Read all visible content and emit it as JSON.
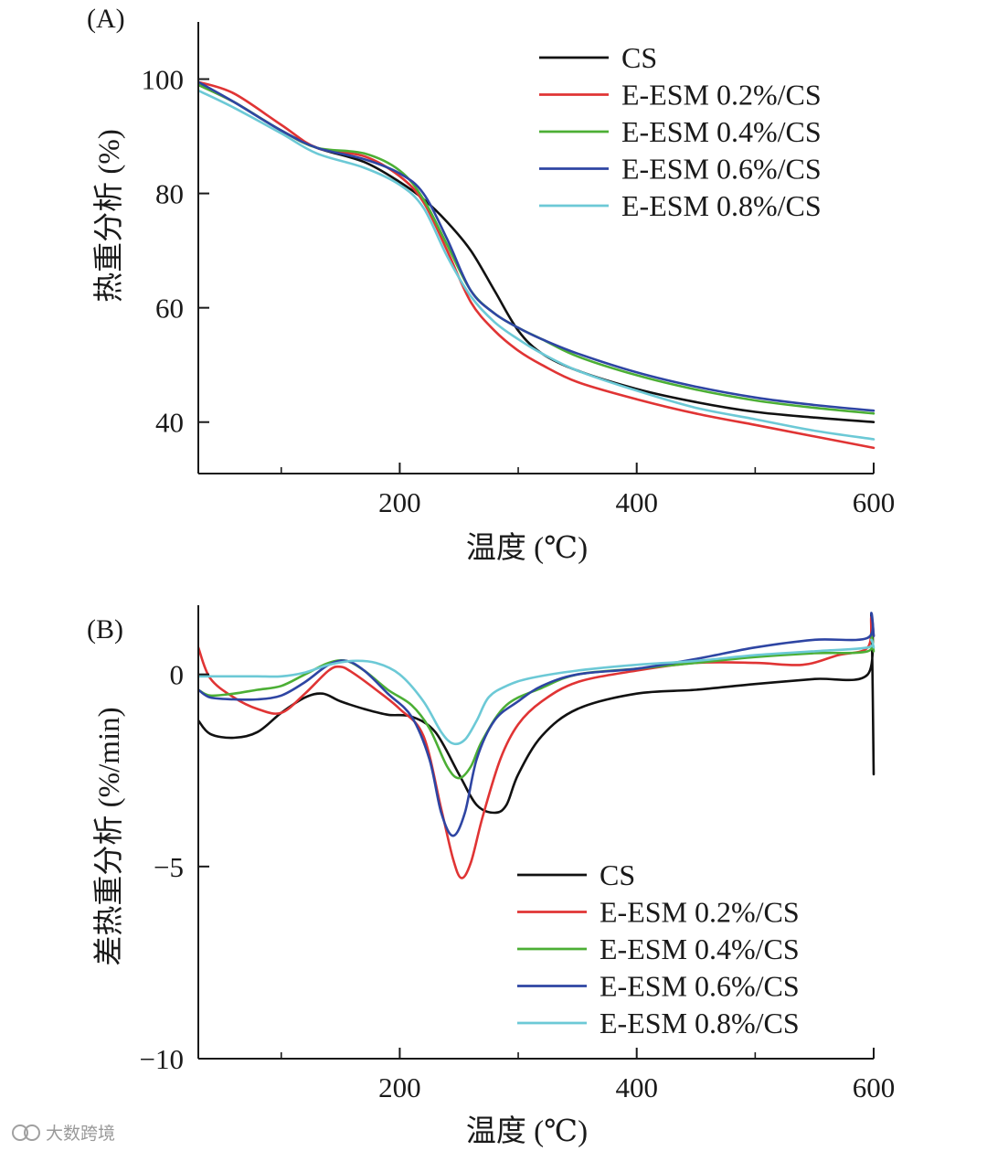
{
  "watermark": "大数跨境",
  "chart_data": [
    {
      "type": "line",
      "panel_label": "(A)",
      "xlabel": "温度 (℃)",
      "ylabel": "热重分析 (%)",
      "xlim": [
        30,
        600
      ],
      "ylim": [
        31,
        110
      ],
      "xticks": [
        200,
        400,
        600
      ],
      "xtick_labels": [
        "200",
        "400",
        "600"
      ],
      "xminor": [
        100,
        300,
        500
      ],
      "yticks": [
        40,
        60,
        80,
        100
      ],
      "ytick_labels": [
        "40",
        "60",
        "80",
        "100"
      ],
      "legend_position": "top-right",
      "series": [
        {
          "name": "CS",
          "color": "#111111",
          "x": [
            30,
            60,
            100,
            130,
            170,
            200,
            220,
            240,
            260,
            280,
            300,
            320,
            350,
            400,
            450,
            500,
            550,
            600
          ],
          "y": [
            99,
            96,
            91,
            88,
            85.5,
            82,
            79,
            75,
            70,
            63,
            56,
            52,
            49,
            45.8,
            43.5,
            41.8,
            40.8,
            40
          ]
        },
        {
          "name": "E-ESM 0.2%/CS",
          "color": "#e03434",
          "x": [
            30,
            60,
            100,
            130,
            170,
            200,
            220,
            240,
            260,
            280,
            300,
            320,
            350,
            400,
            450,
            500,
            550,
            600
          ],
          "y": [
            99.5,
            97.5,
            92,
            88,
            86.5,
            83,
            78.5,
            70,
            61,
            56,
            52.5,
            50,
            47,
            44,
            41.5,
            39.5,
            37.5,
            35.5
          ]
        },
        {
          "name": "E-ESM 0.4%/CS",
          "color": "#4caf35",
          "x": [
            30,
            60,
            100,
            130,
            170,
            200,
            220,
            240,
            260,
            280,
            300,
            320,
            350,
            400,
            450,
            500,
            550,
            600
          ],
          "y": [
            99,
            96,
            91,
            88,
            87,
            84,
            79,
            71,
            63,
            59,
            56.5,
            54.5,
            51.5,
            48.2,
            45.7,
            43.8,
            42.5,
            41.5
          ]
        },
        {
          "name": "E-ESM 0.6%/CS",
          "color": "#2e45a3",
          "x": [
            30,
            60,
            100,
            130,
            170,
            200,
            220,
            240,
            260,
            280,
            300,
            320,
            350,
            400,
            450,
            500,
            550,
            600
          ],
          "y": [
            99.5,
            96,
            91,
            88,
            86,
            83.5,
            80,
            72,
            63,
            59,
            56.5,
            54.5,
            52,
            48.7,
            46.2,
            44.3,
            43,
            42
          ]
        },
        {
          "name": "E-ESM 0.8%/CS",
          "color": "#6cc9d6",
          "x": [
            30,
            60,
            100,
            130,
            170,
            200,
            220,
            240,
            260,
            280,
            300,
            320,
            350,
            400,
            450,
            500,
            550,
            600
          ],
          "y": [
            98,
            95,
            90.5,
            87,
            84.5,
            81.5,
            77.5,
            69,
            62,
            57.5,
            54.5,
            52,
            49,
            45.5,
            42.5,
            40.5,
            38.5,
            37
          ]
        }
      ]
    },
    {
      "type": "line",
      "panel_label": "(B)",
      "xlabel": "温度 (℃)",
      "ylabel": "差热重分析 (%/min)",
      "xlim": [
        30,
        600
      ],
      "ylim": [
        -10,
        1.8
      ],
      "xticks": [
        200,
        400,
        600
      ],
      "xtick_labels": [
        "200",
        "400",
        "600"
      ],
      "xminor": [
        100,
        300,
        500
      ],
      "yticks": [
        -10,
        -5,
        0
      ],
      "ytick_labels": [
        "−10",
        "−5",
        "0"
      ],
      "legend_position": "bottom-right",
      "series": [
        {
          "name": "CS",
          "color": "#111111",
          "x": [
            30,
            40,
            60,
            80,
            100,
            120,
            135,
            150,
            170,
            190,
            210,
            230,
            250,
            265,
            280,
            290,
            300,
            320,
            350,
            400,
            450,
            500,
            550,
            595,
            598,
            600
          ],
          "y": [
            -1.2,
            -1.55,
            -1.65,
            -1.5,
            -1.0,
            -0.6,
            -0.5,
            -0.7,
            -0.9,
            -1.05,
            -1.1,
            -1.5,
            -2.6,
            -3.4,
            -3.6,
            -3.4,
            -2.6,
            -1.6,
            -0.9,
            -0.5,
            -0.4,
            -0.25,
            -0.12,
            0.0,
            1.5,
            -2.6
          ]
        },
        {
          "name": "E-ESM 0.2%/CS",
          "color": "#e03434",
          "x": [
            30,
            40,
            60,
            80,
            100,
            120,
            140,
            150,
            160,
            180,
            200,
            220,
            235,
            245,
            252,
            260,
            270,
            285,
            300,
            320,
            350,
            400,
            450,
            500,
            540,
            570,
            595,
            598,
            600
          ],
          "y": [
            0.7,
            -0.1,
            -0.6,
            -0.9,
            -1.0,
            -0.5,
            0.1,
            0.2,
            0.05,
            -0.4,
            -0.9,
            -1.6,
            -3.5,
            -4.8,
            -5.3,
            -4.9,
            -3.7,
            -2.2,
            -1.3,
            -0.7,
            -0.2,
            0.1,
            0.3,
            0.3,
            0.25,
            0.5,
            0.7,
            1.5,
            1.0
          ]
        },
        {
          "name": "E-ESM 0.4%/CS",
          "color": "#4caf35",
          "x": [
            30,
            40,
            60,
            80,
            100,
            120,
            140,
            155,
            170,
            190,
            210,
            225,
            240,
            250,
            260,
            270,
            290,
            320,
            350,
            400,
            450,
            500,
            550,
            595,
            598,
            600
          ],
          "y": [
            -0.4,
            -0.55,
            -0.5,
            -0.4,
            -0.3,
            0.0,
            0.3,
            0.35,
            0.1,
            -0.4,
            -0.8,
            -1.4,
            -2.4,
            -2.7,
            -2.4,
            -1.7,
            -0.8,
            -0.35,
            0.0,
            0.15,
            0.3,
            0.45,
            0.55,
            0.6,
            1.0,
            0.6
          ]
        },
        {
          "name": "E-ESM 0.6%/CS",
          "color": "#2e45a3",
          "x": [
            30,
            40,
            60,
            80,
            100,
            120,
            140,
            155,
            170,
            190,
            210,
            225,
            235,
            245,
            255,
            265,
            280,
            300,
            320,
            350,
            400,
            450,
            500,
            550,
            595,
            598,
            600
          ],
          "y": [
            -0.4,
            -0.6,
            -0.65,
            -0.65,
            -0.55,
            -0.2,
            0.25,
            0.35,
            0.1,
            -0.5,
            -1.1,
            -2.2,
            -3.6,
            -4.2,
            -3.6,
            -2.2,
            -1.2,
            -0.7,
            -0.3,
            0.0,
            0.15,
            0.4,
            0.7,
            0.9,
            0.95,
            1.6,
            1.0
          ]
        },
        {
          "name": "E-ESM 0.8%/CS",
          "color": "#6cc9d6",
          "x": [
            30,
            40,
            60,
            80,
            100,
            120,
            140,
            160,
            180,
            200,
            220,
            235,
            245,
            255,
            265,
            275,
            290,
            310,
            350,
            400,
            450,
            500,
            550,
            595,
            598,
            600
          ],
          "y": [
            -0.05,
            -0.05,
            -0.05,
            -0.05,
            -0.05,
            0.05,
            0.25,
            0.35,
            0.3,
            0.0,
            -0.7,
            -1.5,
            -1.8,
            -1.7,
            -1.2,
            -0.6,
            -0.3,
            -0.1,
            0.1,
            0.25,
            0.35,
            0.5,
            0.6,
            0.7,
            0.9,
            0.7
          ]
        }
      ]
    }
  ]
}
